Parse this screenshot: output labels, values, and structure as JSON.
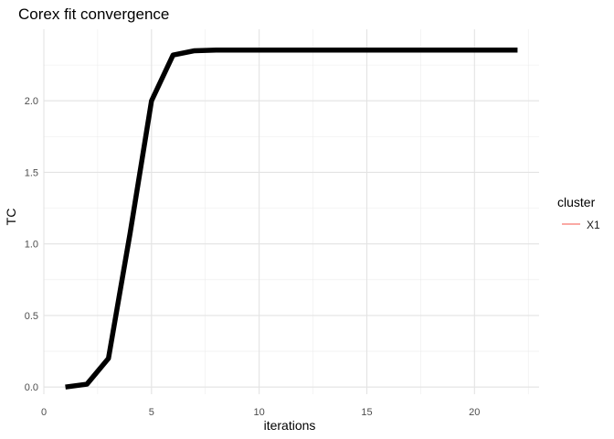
{
  "chart_data": {
    "type": "line",
    "title": "Corex fit convergence",
    "xlabel": "iterations",
    "ylabel": "TC",
    "xlim": [
      0,
      23
    ],
    "ylim": [
      -0.05,
      2.5
    ],
    "x_ticks": [
      0,
      5,
      10,
      15,
      20
    ],
    "x_tick_labels": [
      "0",
      "5",
      "10",
      "15",
      "20"
    ],
    "y_ticks": [
      0.0,
      0.5,
      1.0,
      1.5,
      2.0
    ],
    "y_tick_labels": [
      "0.0",
      "0.5",
      "1.0",
      "1.5",
      "2.0"
    ],
    "grid": true,
    "legend": {
      "title": "cluster",
      "position": "right",
      "entries": [
        {
          "label": "X1",
          "color": "#f8766d"
        }
      ]
    },
    "series": [
      {
        "name": "X1",
        "color": "#000000",
        "x": [
          1,
          2,
          3,
          4,
          5,
          6,
          7,
          8,
          9,
          10,
          11,
          12,
          13,
          14,
          15,
          16,
          17,
          18,
          19,
          20,
          21,
          22
        ],
        "values": [
          0.0,
          0.02,
          0.2,
          1.07,
          2.0,
          2.32,
          2.35,
          2.355,
          2.355,
          2.355,
          2.355,
          2.355,
          2.355,
          2.355,
          2.355,
          2.355,
          2.355,
          2.355,
          2.355,
          2.355,
          2.355,
          2.355
        ]
      }
    ]
  }
}
